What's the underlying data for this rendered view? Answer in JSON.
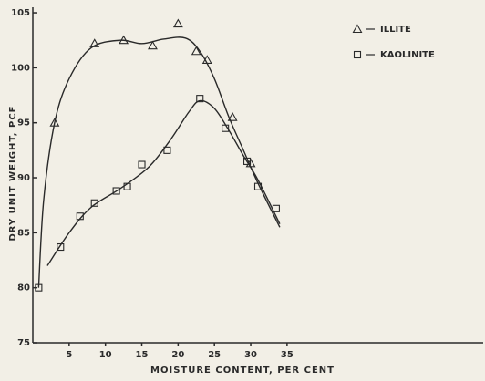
{
  "chart_data": {
    "type": "scatter",
    "xlabel": "MOISTURE CONTENT, PER CENT",
    "ylabel": "DRY UNIT WEIGHT, PCF",
    "xlim": [
      0,
      62
    ],
    "ylim": [
      75,
      105.5
    ],
    "xticks": [
      5,
      10,
      15,
      20,
      25,
      30,
      35
    ],
    "yticks": [
      75,
      80,
      85,
      90,
      95,
      100,
      105
    ],
    "legend": "top-right",
    "series": [
      {
        "name": "ILLITE",
        "marker": "triangle",
        "color": "#2a2a2a",
        "x": [
          3,
          8.5,
          12.5,
          16.5,
          20,
          22.5,
          24,
          27.5,
          30
        ],
        "values": [
          95,
          102.2,
          102.5,
          102,
          104,
          101.5,
          100.7,
          95.5,
          91.3
        ],
        "curve": {
          "x": [
            0.8,
            1.5,
            3,
            5,
            8,
            12,
            15,
            18,
            21,
            23,
            25,
            27,
            29,
            31,
            34
          ],
          "y": [
            80,
            88,
            95,
            99,
            101.8,
            102.5,
            102.2,
            102.6,
            102.7,
            101.5,
            99,
            95.5,
            92.5,
            89.5,
            85.5
          ]
        }
      },
      {
        "name": "KAOLINITE",
        "marker": "square",
        "color": "#2a2a2a",
        "x": [
          0.8,
          3.8,
          6.5,
          8.5,
          11.5,
          13,
          15,
          18.5,
          23,
          26.5,
          29.5,
          31,
          33.5
        ],
        "values": [
          80,
          83.7,
          86.5,
          87.7,
          88.8,
          89.2,
          91.2,
          92.5,
          97.2,
          94.5,
          91.5,
          89.2,
          87.2
        ],
        "curve": {
          "x": [
            2,
            5,
            8,
            12,
            16,
            19,
            21.5,
            23,
            25,
            27,
            29,
            31,
            34
          ],
          "y": [
            82,
            85,
            87.3,
            89,
            91,
            93.5,
            96,
            97,
            96.3,
            94.3,
            92,
            89.8,
            85.8
          ]
        }
      }
    ]
  }
}
